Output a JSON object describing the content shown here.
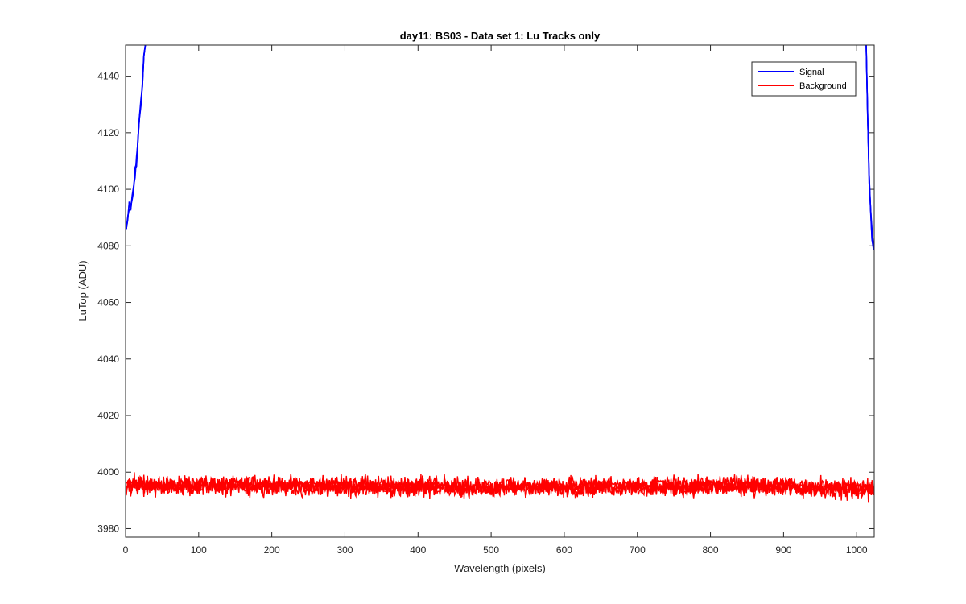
{
  "chart_data": {
    "type": "line",
    "title": "day11: BS03 - Data set 1: Lu Tracks only",
    "xlabel": "Wavelength (pixels)",
    "ylabel": "LuTop (ADU)",
    "xlim": [
      0,
      1024
    ],
    "ylim": [
      3977,
      4151
    ],
    "xticks": [
      0,
      100,
      200,
      300,
      400,
      500,
      600,
      700,
      800,
      900,
      1000
    ],
    "yticks": [
      3980,
      4000,
      4020,
      4040,
      4060,
      4080,
      4100,
      4120,
      4140
    ],
    "grid": false,
    "legend_position": "top-right",
    "series": [
      {
        "name": "Signal",
        "color": "#0000ff",
        "segments": [
          {
            "x": [
              1,
              3,
              5,
              7,
              9,
              11,
              13,
              15,
              17,
              19,
              21,
              23,
              25,
              27
            ],
            "y": [
              4086,
              4090,
              4094,
              4093,
              4097,
              4101,
              4106,
              4110,
              4118,
              4124,
              4131,
              4138,
              4146,
              4151
            ]
          },
          {
            "x": [
              1013,
              1015,
              1017,
              1019,
              1021,
              1023,
              1024
            ],
            "y": [
              4151,
              4125,
              4104,
              4092,
              4084,
              4080,
              4079
            ]
          }
        ]
      },
      {
        "name": "Background",
        "color": "#ff0000",
        "mean": 3995,
        "spread": 3.5,
        "x_range": [
          1,
          1024
        ]
      }
    ]
  }
}
